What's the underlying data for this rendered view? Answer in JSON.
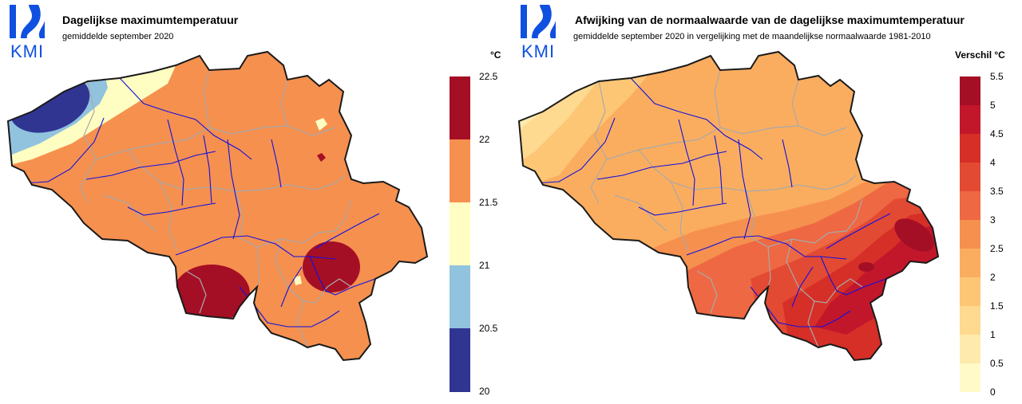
{
  "left_panel": {
    "logo_text": "KMI",
    "title": "Dagelijkse maximumtemperatuur",
    "subtitle": "gemiddelde september 2020",
    "legend": {
      "unit_label": "°C",
      "ticks": [
        "22.5",
        "22",
        "21.5",
        "21",
        "20.5",
        "20"
      ],
      "classes": [
        {
          "range": "22-22.5",
          "color": "#a50f25"
        },
        {
          "range": "21.5-22",
          "color": "#f6904f"
        },
        {
          "range": "21-21.5",
          "color": "#fefec2"
        },
        {
          "range": "20.5-21",
          "color": "#91c3df"
        },
        {
          "range": "20-20.5",
          "color": "#303592"
        }
      ]
    }
  },
  "right_panel": {
    "logo_text": "KMI",
    "title": "Afwijking van de normaalwaarde van de dagelijkse maximumtemperatuur",
    "subtitle": "gemiddelde september 2020 in vergelijking met de maandelijkse normaalwaarde 1981-2010",
    "legend": {
      "unit_label": "Verschil °C",
      "ticks": [
        "5.5",
        "5",
        "4.5",
        "4",
        "3.5",
        "3",
        "2.5",
        "2",
        "1.5",
        "1",
        "0.5",
        "0"
      ],
      "classes": [
        {
          "range": "5-5.5",
          "color": "#a50f25"
        },
        {
          "range": "4.5-5",
          "color": "#c2172b"
        },
        {
          "range": "4-4.5",
          "color": "#d62f27"
        },
        {
          "range": "3.5-4",
          "color": "#e34a33"
        },
        {
          "range": "3-3.5",
          "color": "#ee6843"
        },
        {
          "range": "2.5-3",
          "color": "#f6904f"
        },
        {
          "range": "2-2.5",
          "color": "#fbad5f"
        },
        {
          "range": "1.5-2",
          "color": "#fdc675"
        },
        {
          "range": "1-1.5",
          "color": "#fed990"
        },
        {
          "range": "0.5-1",
          "color": "#feeaad"
        },
        {
          "range": "0-0.5",
          "color": "#fffac8"
        }
      ]
    }
  },
  "colors": {
    "logo_blue": "#1050e0",
    "border": "#1a1a1a",
    "province_borders": "#a9a9a9",
    "rivers": "#1010e0"
  }
}
